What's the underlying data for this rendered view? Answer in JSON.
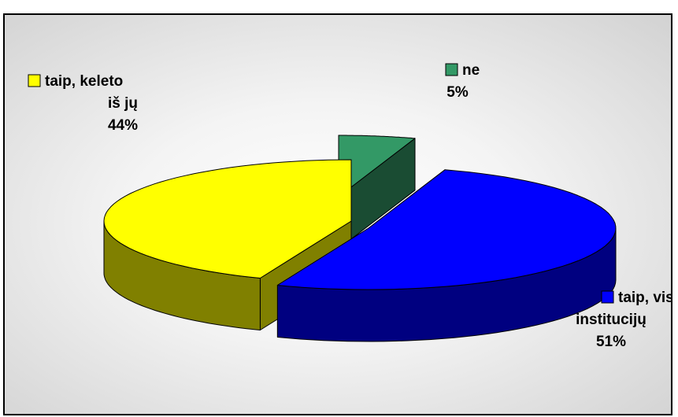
{
  "header_fragment": "",
  "chart_data": {
    "type": "pie",
    "title": "",
    "three_d": true,
    "exploded": true,
    "legend": "inline",
    "slices": [
      {
        "label_lines": [
          "ne"
        ],
        "value": 5,
        "value_label": "5%",
        "color": "#339966",
        "side_color": "#1a4c33"
      },
      {
        "label_lines": [
          "taip, visų",
          "institucijų"
        ],
        "value": 51,
        "value_label": "51%",
        "color": "#0000ff",
        "side_color": "#000080"
      },
      {
        "label_lines": [
          "taip, keleto",
          "iš jų"
        ],
        "value": 44,
        "value_label": "44%",
        "color": "#ffff00",
        "side_color": "#808000"
      }
    ]
  }
}
